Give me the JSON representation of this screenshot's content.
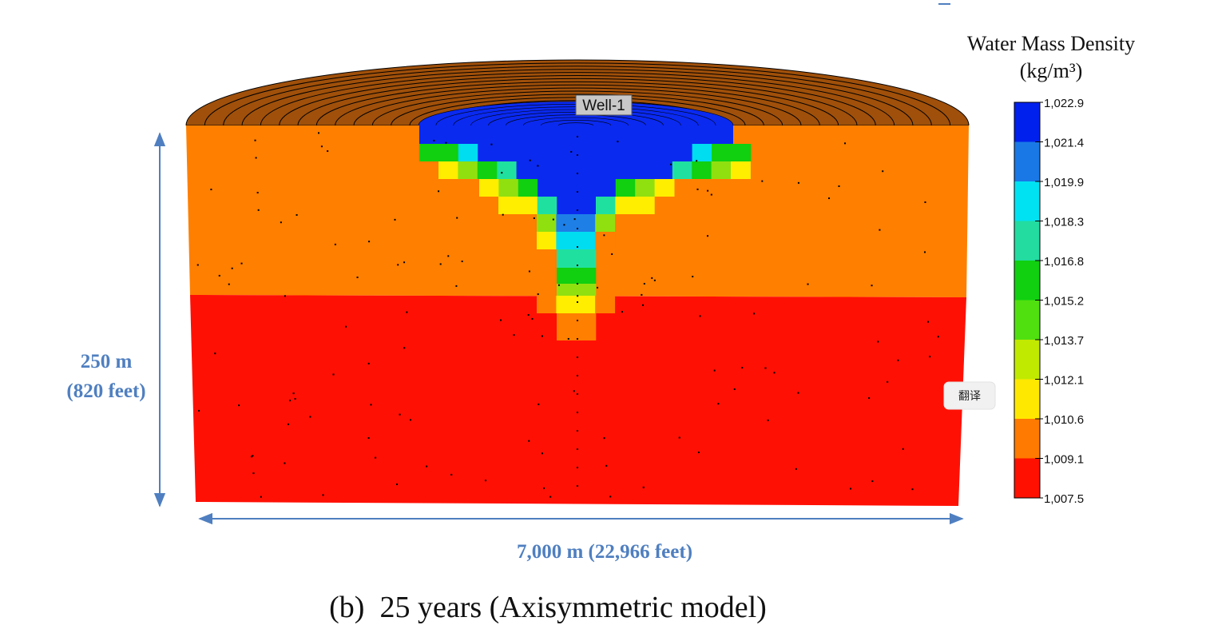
{
  "figure": {
    "colorbar": {
      "title": "Water Mass Density",
      "unit": "(kg/m³)",
      "labels": [
        "1,022.9",
        "1,021.4",
        "1,019.9",
        "1,018.3",
        "1,016.8",
        "1,015.2",
        "1,013.7",
        "1,012.1",
        "1,010.6",
        "1,009.1",
        "1,007.5"
      ]
    },
    "well_label": "Well-1",
    "height_label": {
      "metric": "250 m",
      "imperial": "(820 feet)"
    },
    "width_label": "7,000 m (22,966 feet)",
    "caption": "(b)  25 years (Axisymmetric model)"
  },
  "translate_button": "翻译"
}
